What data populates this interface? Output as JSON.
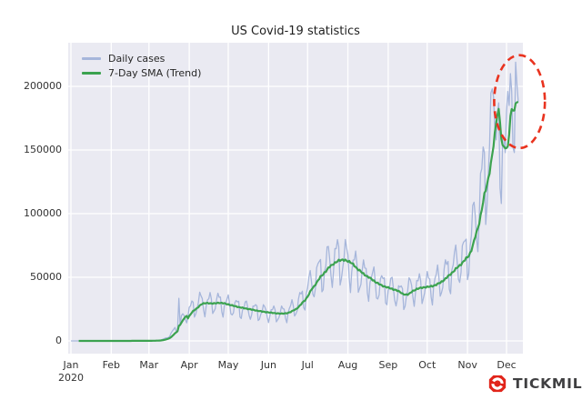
{
  "branding": {
    "logo_text": "TICKMILL",
    "logo_red": "#e1251b",
    "logo_text_color": "#3f3f41"
  },
  "chart_data": {
    "type": "line",
    "title": "US Covid-19 statistics",
    "x_tick_labels": [
      "Jan",
      "Feb",
      "Mar",
      "Apr",
      "May",
      "Jun",
      "Jul",
      "Aug",
      "Sep",
      "Oct",
      "Nov",
      "Dec"
    ],
    "x_first_tick_sublabel": "2020",
    "month_start_days": [
      0,
      31,
      60,
      91,
      121,
      152,
      182,
      213,
      244,
      274,
      305,
      335
    ],
    "n_days": 345,
    "y_ticks": [
      0,
      50000,
      100000,
      150000,
      200000
    ],
    "ylim": [
      -10000,
      234000
    ],
    "xlim_days": [
      -2,
      348
    ],
    "plot_bg": "#eaeaf2",
    "grid_color": "#ffffff",
    "grid": true,
    "legend_position": "upper left",
    "series": [
      {
        "name": "Daily cases",
        "color": "#a6b6db",
        "width": 1.3
      },
      {
        "name": "7-Day SMA (Trend)",
        "color": "#3ba24f",
        "width": 2.2,
        "derived": "7-day moving average of Daily cases"
      }
    ],
    "trend_keypoints": [
      [
        0,
        0
      ],
      [
        40,
        30
      ],
      [
        55,
        60
      ],
      [
        63,
        150
      ],
      [
        68,
        500
      ],
      [
        72,
        1500
      ],
      [
        76,
        4500
      ],
      [
        80,
        9000
      ],
      [
        84,
        15000
      ],
      [
        88,
        20500
      ],
      [
        92,
        25000
      ],
      [
        99,
        31000
      ],
      [
        105,
        30000
      ],
      [
        112,
        31000
      ],
      [
        118,
        29500
      ],
      [
        125,
        27500
      ],
      [
        135,
        25500
      ],
      [
        145,
        23500
      ],
      [
        153,
        22500
      ],
      [
        160,
        21800
      ],
      [
        166,
        23000
      ],
      [
        172,
        27000
      ],
      [
        178,
        34000
      ],
      [
        183,
        43000
      ],
      [
        190,
        53000
      ],
      [
        198,
        62000
      ],
      [
        205,
        66000
      ],
      [
        212,
        64000
      ],
      [
        220,
        55500
      ],
      [
        228,
        50000
      ],
      [
        235,
        45000
      ],
      [
        244,
        42000
      ],
      [
        250,
        40000
      ],
      [
        255,
        36000
      ],
      [
        262,
        42000
      ],
      [
        270,
        43500
      ],
      [
        277,
        44500
      ],
      [
        284,
        49000
      ],
      [
        291,
        56000
      ],
      [
        298,
        63000
      ],
      [
        305,
        71000
      ],
      [
        312,
        100000
      ],
      [
        318,
        133000
      ],
      [
        324,
        162000
      ],
      [
        328,
        170000
      ],
      [
        331,
        168000
      ],
      [
        334,
        152000
      ],
      [
        337,
        156000
      ],
      [
        340,
        158000
      ],
      [
        342,
        166000
      ],
      [
        344,
        188000
      ]
    ],
    "weekly_pattern_sun_to_sat": [
      -0.22,
      -0.26,
      -0.1,
      0.03,
      0.12,
      0.15,
      0.09
    ],
    "noise": {
      "a1": 0.07,
      "f1": 2.3,
      "a2": 0.05,
      "f2": 0.9
    },
    "daily_overrides": {
      "83": 33500,
      "84": 12000,
      "324": 198000,
      "325": 192000,
      "326": 168000,
      "327": 158000,
      "328": 178000,
      "329": 187000,
      "330": 120000,
      "331": 108000,
      "332": 158000,
      "333": 160000,
      "334": 148000,
      "335": 180000,
      "336": 196000,
      "337": 185000,
      "338": 210000,
      "339": 196000,
      "340": 152000,
      "341": 148000,
      "342": 219000,
      "343": 202000,
      "344": 188000
    },
    "annotation": {
      "shape": "dashed-ellipse",
      "color": "#e9331f",
      "center_day": 345,
      "center_value": 188000,
      "rx_days": 19.5,
      "ry_value": 36500
    }
  }
}
